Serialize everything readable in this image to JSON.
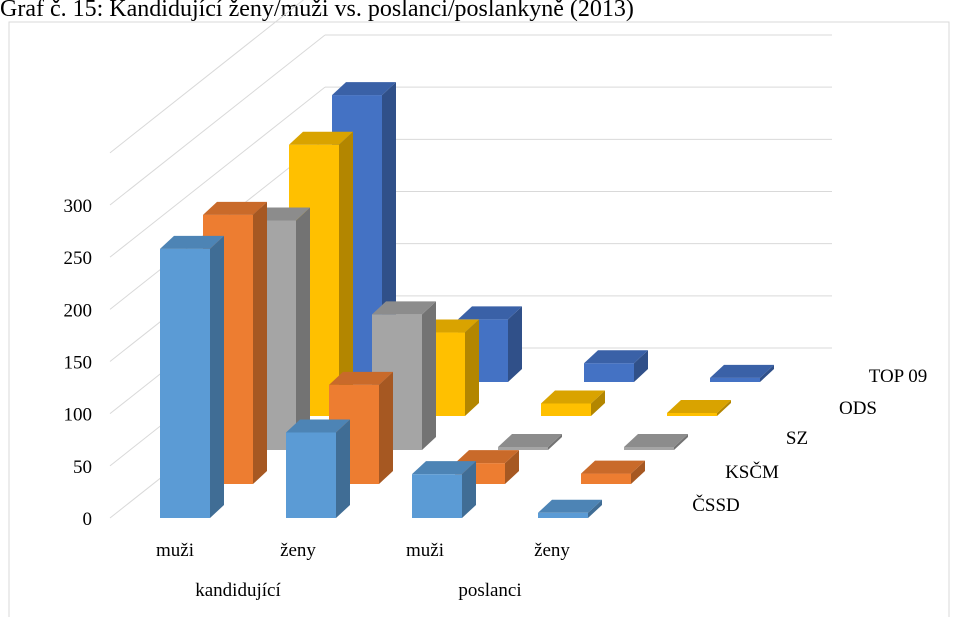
{
  "chart_data": {
    "type": "bar",
    "variant": "3d-column",
    "title": "Graf č. 15: Kandidující ženy/muži vs. poslanci/poslankyně (2013)",
    "categories": [
      "muži",
      "ženy",
      "muži",
      "ženy"
    ],
    "groups": [
      {
        "label": "kandidující",
        "categories": [
          0,
          1
        ]
      },
      {
        "label": "poslanci",
        "categories": [
          2,
          3
        ]
      }
    ],
    "yticks": [
      "0",
      "50",
      "100",
      "150",
      "200",
      "250",
      "300"
    ],
    "ylim": [
      0,
      350
    ],
    "grid": true,
    "series": [
      {
        "name": "ČSSD",
        "color": "#5b9bd5",
        "values": [
          258,
          82,
          42,
          5
        ]
      },
      {
        "name": "KSČM",
        "color": "#ed7d31",
        "values": [
          258,
          95,
          20,
          10
        ]
      },
      {
        "name": "SZ",
        "color": "#a5a5a5",
        "values": [
          220,
          130,
          0,
          0
        ]
      },
      {
        "name": "ODS",
        "color": "#ffc000",
        "values": [
          260,
          80,
          12,
          2
        ]
      },
      {
        "name": "TOP 09",
        "color": "#4472c4",
        "values": [
          275,
          60,
          18,
          4
        ]
      }
    ]
  }
}
